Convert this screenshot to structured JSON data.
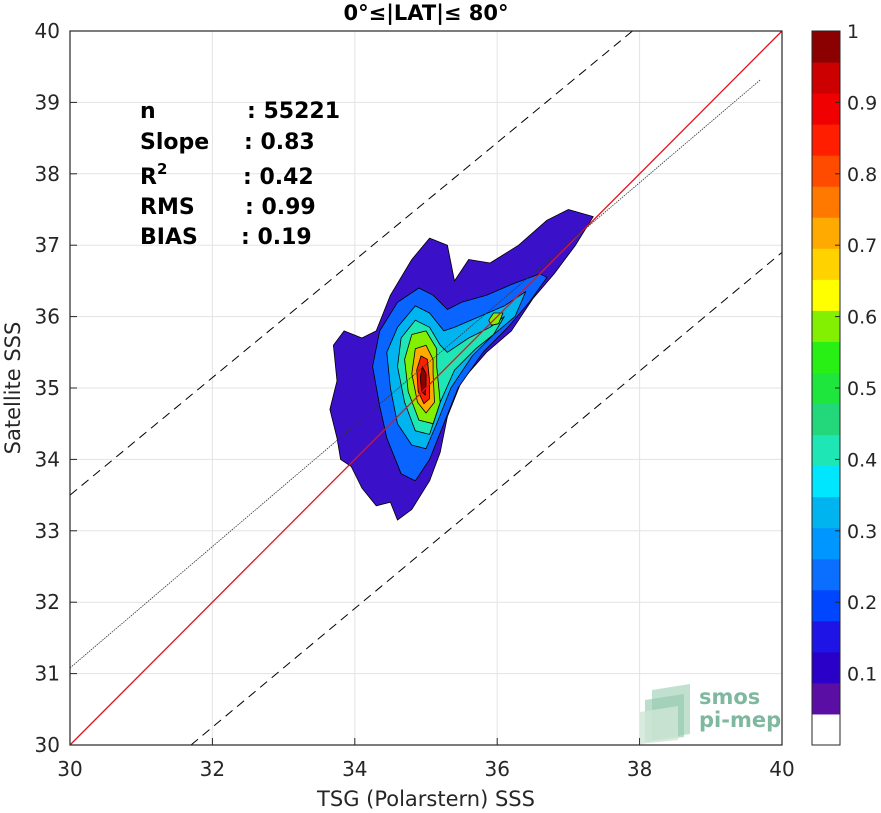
{
  "chart_data": {
    "type": "contour",
    "title": "0°≤|LAT|≤ 80°",
    "xlabel": "TSG (Polarstern) SSS",
    "ylabel": "Satellite SSS",
    "xlim": [
      30,
      40
    ],
    "ylim": [
      30,
      40
    ],
    "xticks": [
      "30",
      "32",
      "34",
      "36",
      "38",
      "40"
    ],
    "yticks": [
      "30",
      "31",
      "32",
      "33",
      "34",
      "35",
      "36",
      "37",
      "38",
      "39",
      "40"
    ],
    "grid": true,
    "stats": [
      {
        "name": "n",
        "value": ": 55221"
      },
      {
        "name": "Slope",
        "value": ": 0.83"
      },
      {
        "name": "R",
        "sup": "2",
        "value": ": 0.42"
      },
      {
        "name": "RMS",
        "value": ": 0.99"
      },
      {
        "name": "BIAS",
        "value": ": 0.19"
      }
    ],
    "lines": [
      {
        "name": "one-to-one",
        "style": "solid",
        "color": "#e0141e",
        "points": [
          [
            30,
            30
          ],
          [
            40,
            40
          ]
        ]
      },
      {
        "name": "regression",
        "style": "thin",
        "color": "#333333",
        "points": [
          [
            30,
            31.08
          ],
          [
            39.7,
            39.32
          ]
        ]
      },
      {
        "name": "upper-bound",
        "style": "dashed",
        "color": "#000000",
        "points": [
          [
            30,
            33.5
          ],
          [
            37.9,
            40
          ]
        ]
      },
      {
        "name": "lower-bound",
        "style": "dashed",
        "color": "#000000",
        "points": [
          [
            31.7,
            30
          ],
          [
            40,
            36.9
          ]
        ]
      }
    ],
    "density_center": [
      35.0,
      35.1
    ],
    "colorbar": {
      "ticks": [
        "0.1",
        "0.2",
        "0.3",
        "0.4",
        "0.5",
        "0.6",
        "0.7",
        "0.8",
        "0.9",
        "1"
      ],
      "range": [
        0,
        1
      ],
      "colors": [
        "#ffffff",
        "#5a0ea4",
        "#2a00c8",
        "#1e14e6",
        "#0046ff",
        "#0a6eff",
        "#0096ff",
        "#00b4f0",
        "#00e6ff",
        "#1ee6b4",
        "#22d87a",
        "#1ee63c",
        "#28f014",
        "#82f000",
        "#ffff00",
        "#ffd200",
        "#ffaa00",
        "#ff7800",
        "#ff4b00",
        "#ff1e00",
        "#f00000",
        "#cc0000",
        "#8b0000"
      ]
    },
    "contours": [
      {
        "level": 0.05,
        "color": "#3a10c8",
        "points": [
          [
            35.6,
            36.8
          ],
          [
            35.9,
            36.75
          ],
          [
            36.3,
            37.0
          ],
          [
            36.7,
            37.35
          ],
          [
            37.0,
            37.5
          ],
          [
            37.35,
            37.4
          ],
          [
            37.1,
            37.0
          ],
          [
            36.8,
            36.6
          ],
          [
            36.5,
            36.25
          ],
          [
            36.2,
            35.8
          ],
          [
            35.85,
            35.5
          ],
          [
            35.5,
            35.1
          ],
          [
            35.3,
            34.6
          ],
          [
            35.2,
            34.1
          ],
          [
            35.05,
            33.7
          ],
          [
            34.8,
            33.3
          ],
          [
            34.6,
            33.15
          ],
          [
            34.5,
            33.4
          ],
          [
            34.3,
            33.35
          ],
          [
            34.1,
            33.6
          ],
          [
            33.95,
            33.9
          ],
          [
            33.8,
            34.0
          ],
          [
            33.75,
            34.3
          ],
          [
            33.65,
            34.7
          ],
          [
            33.75,
            35.1
          ],
          [
            33.7,
            35.6
          ],
          [
            33.85,
            35.8
          ],
          [
            34.1,
            35.7
          ],
          [
            34.3,
            35.8
          ],
          [
            34.5,
            36.3
          ],
          [
            34.8,
            36.8
          ],
          [
            35.05,
            37.1
          ],
          [
            35.3,
            37.0
          ],
          [
            35.4,
            36.5
          ],
          [
            35.6,
            36.8
          ]
        ]
      },
      {
        "level": 0.15,
        "color": "#0a64ff",
        "points": [
          [
            35.5,
            36.2
          ],
          [
            35.85,
            36.3
          ],
          [
            36.2,
            36.45
          ],
          [
            36.6,
            36.6
          ],
          [
            36.7,
            36.55
          ],
          [
            36.45,
            36.2
          ],
          [
            36.15,
            35.85
          ],
          [
            35.8,
            35.5
          ],
          [
            35.45,
            35.0
          ],
          [
            35.25,
            34.5
          ],
          [
            35.05,
            34.0
          ],
          [
            34.85,
            33.7
          ],
          [
            34.65,
            33.8
          ],
          [
            34.45,
            34.3
          ],
          [
            34.35,
            34.75
          ],
          [
            34.25,
            35.3
          ],
          [
            34.35,
            35.8
          ],
          [
            34.6,
            36.2
          ],
          [
            34.9,
            36.4
          ],
          [
            35.1,
            36.3
          ],
          [
            35.3,
            36.1
          ],
          [
            35.5,
            36.2
          ]
        ]
      },
      {
        "level": 0.3,
        "color": "#00b4f0",
        "points": [
          [
            35.4,
            35.85
          ],
          [
            35.75,
            36.0
          ],
          [
            36.1,
            36.15
          ],
          [
            36.4,
            36.35
          ],
          [
            36.25,
            36.0
          ],
          [
            35.95,
            35.75
          ],
          [
            35.65,
            35.45
          ],
          [
            35.35,
            35.0
          ],
          [
            35.15,
            34.5
          ],
          [
            35.0,
            34.15
          ],
          [
            34.8,
            34.2
          ],
          [
            34.6,
            34.5
          ],
          [
            34.5,
            35.0
          ],
          [
            34.45,
            35.5
          ],
          [
            34.6,
            35.85
          ],
          [
            34.85,
            36.15
          ],
          [
            35.05,
            36.05
          ],
          [
            35.25,
            35.8
          ],
          [
            35.4,
            35.85
          ]
        ]
      },
      {
        "level": 0.45,
        "color": "#1ee6b4",
        "points": [
          [
            35.3,
            35.5
          ],
          [
            35.6,
            35.7
          ],
          [
            35.9,
            35.85
          ],
          [
            36.1,
            36.0
          ],
          [
            35.95,
            35.75
          ],
          [
            35.7,
            35.55
          ],
          [
            35.4,
            35.25
          ],
          [
            35.2,
            34.8
          ],
          [
            35.05,
            34.35
          ],
          [
            34.85,
            34.4
          ],
          [
            34.7,
            34.8
          ],
          [
            34.6,
            35.3
          ],
          [
            34.65,
            35.7
          ],
          [
            34.85,
            35.95
          ],
          [
            35.05,
            35.85
          ],
          [
            35.2,
            35.6
          ],
          [
            35.3,
            35.5
          ]
        ]
      },
      {
        "level": 0.55,
        "color": "#82f000",
        "points": [
          [
            35.15,
            35.3
          ],
          [
            35.2,
            34.8
          ],
          [
            35.1,
            34.5
          ],
          [
            34.9,
            34.55
          ],
          [
            34.75,
            34.95
          ],
          [
            34.7,
            35.4
          ],
          [
            34.8,
            35.75
          ],
          [
            35.0,
            35.8
          ],
          [
            35.15,
            35.55
          ],
          [
            35.15,
            35.3
          ]
        ]
      },
      {
        "level": 0.7,
        "color": "#ffaa00",
        "points": [
          [
            35.1,
            35.2
          ],
          [
            35.12,
            34.8
          ],
          [
            35.0,
            34.65
          ],
          [
            34.88,
            34.8
          ],
          [
            34.8,
            35.2
          ],
          [
            34.85,
            35.55
          ],
          [
            35.0,
            35.6
          ],
          [
            35.1,
            35.4
          ],
          [
            35.1,
            35.2
          ]
        ]
      },
      {
        "level": 0.85,
        "color": "#ff1e00",
        "points": [
          [
            35.05,
            35.1
          ],
          [
            35.05,
            34.85
          ],
          [
            34.97,
            34.78
          ],
          [
            34.89,
            34.95
          ],
          [
            34.87,
            35.25
          ],
          [
            34.93,
            35.45
          ],
          [
            35.02,
            35.4
          ],
          [
            35.05,
            35.1
          ]
        ]
      },
      {
        "level": 1.0,
        "color": "#8b0000",
        "points": [
          [
            35.0,
            35.05
          ],
          [
            34.99,
            34.9
          ],
          [
            34.94,
            34.95
          ],
          [
            34.92,
            35.15
          ],
          [
            34.95,
            35.3
          ],
          [
            35.0,
            35.2
          ],
          [
            35.0,
            35.05
          ]
        ]
      },
      {
        "level": 0.6,
        "color": "#82f000",
        "points": [
          [
            35.88,
            35.95
          ],
          [
            35.95,
            36.05
          ],
          [
            36.08,
            36.05
          ],
          [
            36.02,
            35.9
          ],
          [
            35.92,
            35.88
          ],
          [
            35.88,
            35.95
          ]
        ]
      }
    ]
  },
  "logo": {
    "line1": "smos",
    "line2": "pi-mep"
  }
}
